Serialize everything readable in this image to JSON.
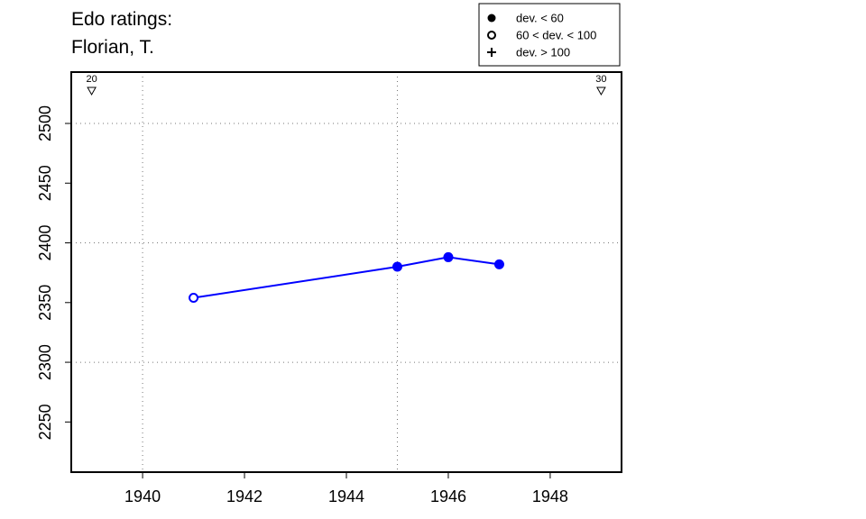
{
  "chart_data": {
    "type": "line",
    "title_lines": [
      "Edo ratings:",
      "Florian, T."
    ],
    "xlabel": "",
    "ylabel": "",
    "xlim": [
      1938.6,
      1949.4
    ],
    "ylim": [
      2208,
      2543
    ],
    "x_ticks": [
      1940,
      1942,
      1944,
      1946,
      1948
    ],
    "y_ticks": [
      2250,
      2300,
      2350,
      2400,
      2450,
      2500
    ],
    "x_grid": [
      1940,
      1945
    ],
    "y_grid": [
      2300,
      2400,
      2500
    ],
    "grid": true,
    "series": [
      {
        "color": "#0000ff",
        "points": [
          {
            "x": 1941,
            "y": 2354,
            "marker": "open-circle"
          },
          {
            "x": 1945,
            "y": 2380,
            "marker": "filled-circle"
          },
          {
            "x": 1946,
            "y": 2388,
            "marker": "filled-circle"
          },
          {
            "x": 1947,
            "y": 2382,
            "marker": "filled-circle"
          }
        ]
      }
    ],
    "top_markers": [
      {
        "x": 1939,
        "label": "20"
      },
      {
        "x": 1949,
        "label": "30"
      }
    ],
    "legend": {
      "position": "top-right",
      "entries": [
        {
          "symbol": "filled-circle",
          "label": "dev. < 60"
        },
        {
          "symbol": "open-circle",
          "label": "60 < dev. < 100"
        },
        {
          "symbol": "plus",
          "label": "dev. > 100"
        }
      ]
    }
  }
}
